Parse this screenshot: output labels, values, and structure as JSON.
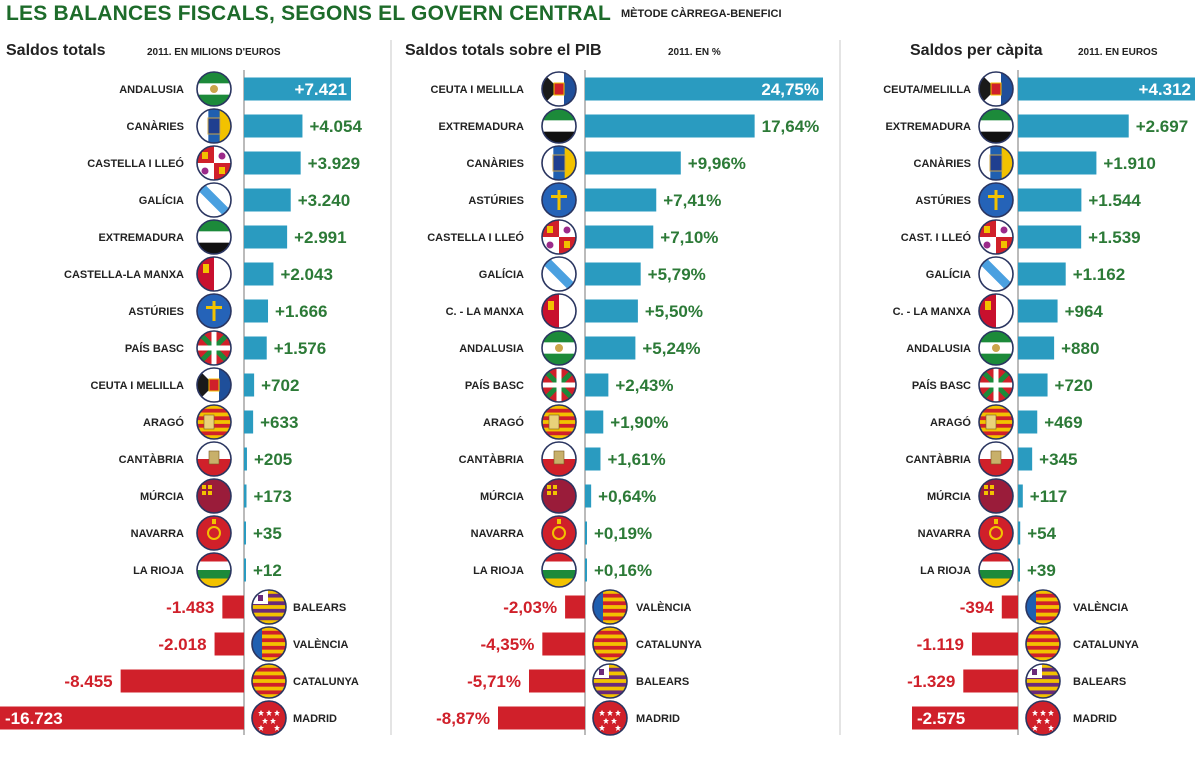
{
  "header": {
    "title": "LES BALANCES FISCALS, SEGONS EL GOVERN CENTRAL",
    "method": "MÈTODE CÀRREGA-BENEFICI"
  },
  "colors": {
    "positive_bar": "#2a9bc0",
    "negative_bar": "#d0202a",
    "positive_text": "#2c7a37",
    "negative_text": "#d0202a"
  },
  "chart_data": [
    {
      "type": "bar",
      "title": "Saldos totals",
      "subtitle": "2011. EN MILIONS D'EUROS",
      "categories": [
        "ANDALUSIA",
        "CANÀRIES",
        "CASTELLA I LLEÓ",
        "GALÍCIA",
        "EXTREMADURA",
        "CASTELLA-LA MANXA",
        "ASTÚRIES",
        "PAÍS BASC",
        "CEUTA I MELILLA",
        "ARAGÓ",
        "CANTÀBRIA",
        "MÚRCIA",
        "NAVARRA",
        "LA RIOJA",
        "BALEARS",
        "VALÈNCIA",
        "CATALUNYA",
        "MADRID"
      ],
      "flags": [
        "andalusia-flag",
        "canaries-flag",
        "castella-lleo-flag",
        "galicia-flag",
        "extremadura-flag",
        "castella-manxa-flag",
        "asturies-flag",
        "pais-basc-flag",
        "ceuta-melilla-flag",
        "arago-flag",
        "cantabria-flag",
        "murcia-flag",
        "navarra-flag",
        "la-rioja-flag",
        "balears-flag",
        "valencia-flag",
        "catalunya-flag",
        "madrid-flag"
      ],
      "values": [
        7421,
        4054,
        3929,
        3240,
        2991,
        2043,
        1666,
        1576,
        702,
        633,
        205,
        173,
        35,
        12,
        -1483,
        -2018,
        -8455,
        -16723
      ],
      "labels": [
        "+7.421",
        "+4.054",
        "+3.929",
        "+3.240",
        "+2.991",
        "+2.043",
        "+1.666",
        "+1.576",
        "+702",
        "+633",
        "+205",
        "+173",
        "+35",
        "+12",
        "-1.483",
        "-2.018",
        "-8.455",
        "-16.723"
      ],
      "inside_label": [
        true,
        false,
        false,
        false,
        false,
        false,
        false,
        false,
        false,
        false,
        false,
        false,
        false,
        false,
        false,
        false,
        false,
        true
      ]
    },
    {
      "type": "bar",
      "title": "Saldos totals sobre el PIB",
      "subtitle": "2011. EN %",
      "categories": [
        "CEUTA I MELILLA",
        "EXTREMADURA",
        "CANÀRIES",
        "ASTÚRIES",
        "CASTELLA I LLEÓ",
        "GALÍCIA",
        "C. - LA MANXA",
        "ANDALUSIA",
        "PAÍS BASC",
        "ARAGÓ",
        "CANTÀBRIA",
        "MÚRCIA",
        "NAVARRA",
        "LA RIOJA",
        "VALÈNCIA",
        "CATALUNYA",
        "BALEARS",
        "MADRID"
      ],
      "flags": [
        "ceuta-melilla-flag",
        "extremadura-flag",
        "canaries-flag",
        "asturies-flag",
        "castella-lleo-flag",
        "galicia-flag",
        "castella-manxa-flag",
        "andalusia-flag",
        "pais-basc-flag",
        "arago-flag",
        "cantabria-flag",
        "murcia-flag",
        "navarra-flag",
        "la-rioja-flag",
        "valencia-flag",
        "catalunya-flag",
        "balears-flag",
        "madrid-flag"
      ],
      "values": [
        24.75,
        17.64,
        9.96,
        7.41,
        7.1,
        5.79,
        5.5,
        5.24,
        2.43,
        1.9,
        1.61,
        0.64,
        0.19,
        0.16,
        -2.03,
        -4.35,
        -5.71,
        -8.87
      ],
      "labels": [
        "24,75%",
        "17,64%",
        "+9,96%",
        "+7,41%",
        "+7,10%",
        "+5,79%",
        "+5,50%",
        "+5,24%",
        "+2,43%",
        "+1,90%",
        "+1,61%",
        "+0,64%",
        "+0,19%",
        "+0,16%",
        "-2,03%",
        "-4,35%",
        "-5,71%",
        "-8,87%"
      ],
      "inside_label": [
        true,
        false,
        false,
        false,
        false,
        false,
        false,
        false,
        false,
        false,
        false,
        false,
        false,
        false,
        false,
        false,
        false,
        false
      ]
    },
    {
      "type": "bar",
      "title": "Saldos per càpita",
      "subtitle": "2011. EN EUROS",
      "categories": [
        "CEUTA/MELILLA",
        "EXTREMADURA",
        "CANÀRIES",
        "ASTÚRIES",
        "CAST. I LLEÓ",
        "GALÍCIA",
        "C. - LA MANXA",
        "ANDALUSIA",
        "PAÍS BASC",
        "ARAGÓ",
        "CANTÀBRIA",
        "MÚRCIA",
        "NAVARRA",
        "LA RIOJA",
        "VALÈNCIA",
        "CATALUNYA",
        "BALEARS",
        "MADRID"
      ],
      "flags": [
        "ceuta-melilla-flag",
        "extremadura-flag",
        "canaries-flag",
        "asturies-flag",
        "castella-lleo-flag",
        "galicia-flag",
        "castella-manxa-flag",
        "andalusia-flag",
        "pais-basc-flag",
        "arago-flag",
        "cantabria-flag",
        "murcia-flag",
        "navarra-flag",
        "la-rioja-flag",
        "valencia-flag",
        "catalunya-flag",
        "balears-flag",
        "madrid-flag"
      ],
      "values": [
        4312,
        2697,
        1910,
        1544,
        1539,
        1162,
        964,
        880,
        720,
        469,
        345,
        117,
        54,
        39,
        -394,
        -1119,
        -1329,
        -2575
      ],
      "labels": [
        "+4.312",
        "+2.697",
        "+1.910",
        "+1.544",
        "+1.539",
        "+1.162",
        "+964",
        "+880",
        "+720",
        "+469",
        "+345",
        "+117",
        "+54",
        "+39",
        "-394",
        "-1.119",
        "-1.329",
        "-2.575"
      ],
      "inside_label": [
        true,
        false,
        false,
        false,
        false,
        false,
        false,
        false,
        false,
        false,
        false,
        false,
        false,
        false,
        false,
        false,
        false,
        true
      ]
    }
  ]
}
